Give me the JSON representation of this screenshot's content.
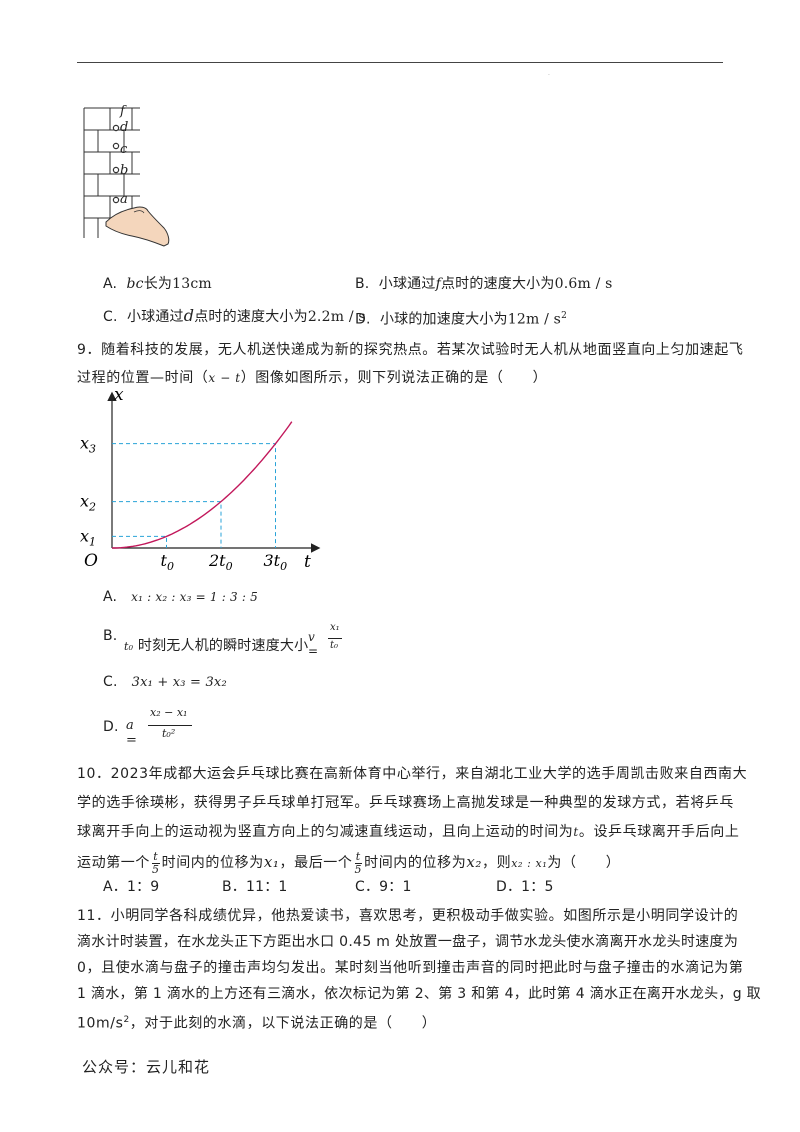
{
  "wall_figure": {
    "labels": [
      "f",
      "d",
      "c",
      "b",
      "a"
    ]
  },
  "q8_options": {
    "A": {
      "prefix": "A.",
      "var": "bc",
      "text": "长为",
      "value": "13cm"
    },
    "B": {
      "prefix": "B.",
      "text1": "小球通过",
      "var": "f",
      "text2": "点时的速度大小为",
      "value": "0.6m / s"
    },
    "C": {
      "prefix": "C.",
      "text1": "小球通过",
      "var": "d",
      "text2": "点时的速度大小为",
      "value": "2.2m / s"
    },
    "D": {
      "prefix": "D.",
      "text": "小球的加速度大小为",
      "value": "12m / s",
      "sup": "2"
    }
  },
  "q9": {
    "line1": "9．随着科技的发展，无人机送快递成为新的探究热点。若某次试验时无人机从地面竖直向上匀加速起飞",
    "line2_a": "过程的位置—时间（",
    "line2_var": "x − t",
    "line2_b": "）图像如图所示，则下列说法正确的是（　　）"
  },
  "chart_data": {
    "type": "line",
    "title": "",
    "xlabel": "t",
    "ylabel": "x",
    "origin_label": "O",
    "x_ticks": [
      "t0",
      "2t0",
      "3t0"
    ],
    "y_ticks": [
      "x1",
      "x2",
      "x3"
    ],
    "series": [
      {
        "x": [
          0,
          1,
          2,
          3,
          3.3
        ],
        "y": [
          0,
          1,
          4,
          9,
          10.9
        ]
      }
    ],
    "colors": {
      "curve": "#c2185b",
      "guides": "#29a3d8",
      "axes": "#222222"
    }
  },
  "q9_options": {
    "A": {
      "prefix": "A.",
      "expr": "x₁ : x₂ : x₃ = 1 : 3 : 5"
    },
    "B": {
      "prefix": "B.",
      "var": "t₀",
      "text": "时刻无人机的瞬时速度大小",
      "lhs": "v =",
      "num": "x₁",
      "den": "t₀"
    },
    "C": {
      "prefix": "C.",
      "expr": "3x₁ + x₃ = 3x₂"
    },
    "D": {
      "prefix": "D.",
      "lhs": "a =",
      "num": "x₂ − x₁",
      "den": "t₀²"
    }
  },
  "q10": {
    "line1": "10．2023年成都大运会乒乓球比赛在高新体育中心举行，来自湖北工业大学的选手周凯击败来自西南大",
    "line2": "学的选手徐瑛彬，获得男子乒乓球单打冠军。乒乓球赛场上高抛发球是一种典型的发球方式，若将乒乓",
    "line3_a": "球离开手向上的运动视为竖直方向上的匀减速直线运动，且向上运动的时间为",
    "line3_var": "t",
    "line3_b": "。设乒乓球离开手后向上",
    "line4_a": "运动第一个",
    "frac_num": "t",
    "frac_den": "5",
    "line4_b": "时间内的位移为",
    "var_x1": "x₁",
    "line4_c": "，最后一个",
    "line4_d": "时间内的位移为",
    "var_x2": "x₂",
    "line4_e": "，则",
    "ratio": "x₂ : x₁",
    "line4_f": "为（　　）",
    "options": [
      {
        "label": "A．1：9"
      },
      {
        "label": "B．11：1"
      },
      {
        "label": "C．9：1"
      },
      {
        "label": "D．1：5"
      }
    ]
  },
  "q11": {
    "line1": "11．小明同学各科成绩优异，他热爱读书，喜欢思考，更积极动手做实验。如图所示是小明同学设计的",
    "line2": "滴水计时装置，在水龙头正下方距出水口 0.45 m 处放置一盘子，调节水龙头使水滴离开水龙头时速度为",
    "line3": "0，且使水滴与盘子的撞击声均匀发出。某时刻当他听到撞击声音的同时把此时与盘子撞击的水滴记为第",
    "line4": "1 滴水，第 1 滴水的上方还有三滴水，依次标记为第 2、第 3 和第 4，此时第 4 滴水正在离开水龙头，g 取",
    "line5_a": "10m/s",
    "line5_sup": "2",
    "line5_b": "，对于此刻的水滴，以下说法正确的是（　　）"
  },
  "footer": "公众号：云儿和花"
}
